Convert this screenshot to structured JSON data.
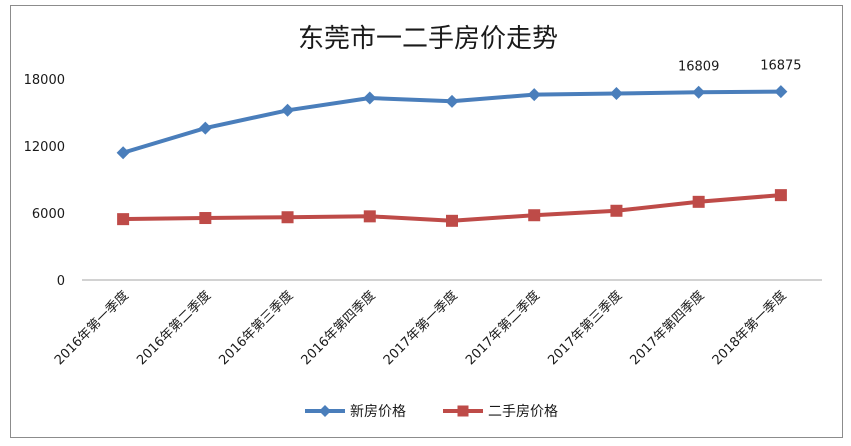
{
  "chart_data": {
    "type": "line",
    "title": "东莞市一二手房价走势",
    "xlabel": "",
    "ylabel": "",
    "categories": [
      "2016年第一季度",
      "2016年第二季度",
      "2016年第三季度",
      "2016年第四季度",
      "2017年第一季度",
      "2017年第二季度",
      "2017年第三季度",
      "2017年第四季度",
      "2018年第一季度"
    ],
    "series": [
      {
        "name": "新房价格",
        "color": "#4a7ebb",
        "marker": "diamond",
        "values": [
          11400,
          13600,
          15200,
          16300,
          16000,
          16600,
          16700,
          16809,
          16875
        ],
        "data_labels": {
          "7": "16809",
          "8": "16875"
        }
      },
      {
        "name": "二手房价格",
        "color": "#be4b48",
        "marker": "square",
        "values": [
          5450,
          5550,
          5620,
          5700,
          5300,
          5800,
          6200,
          7000,
          7600
        ]
      }
    ],
    "ylim": [
      0,
      18000
    ],
    "yticks": [
      "0",
      "6000",
      "12000",
      "18000"
    ],
    "grid": false,
    "legend_position": "bottom"
  }
}
